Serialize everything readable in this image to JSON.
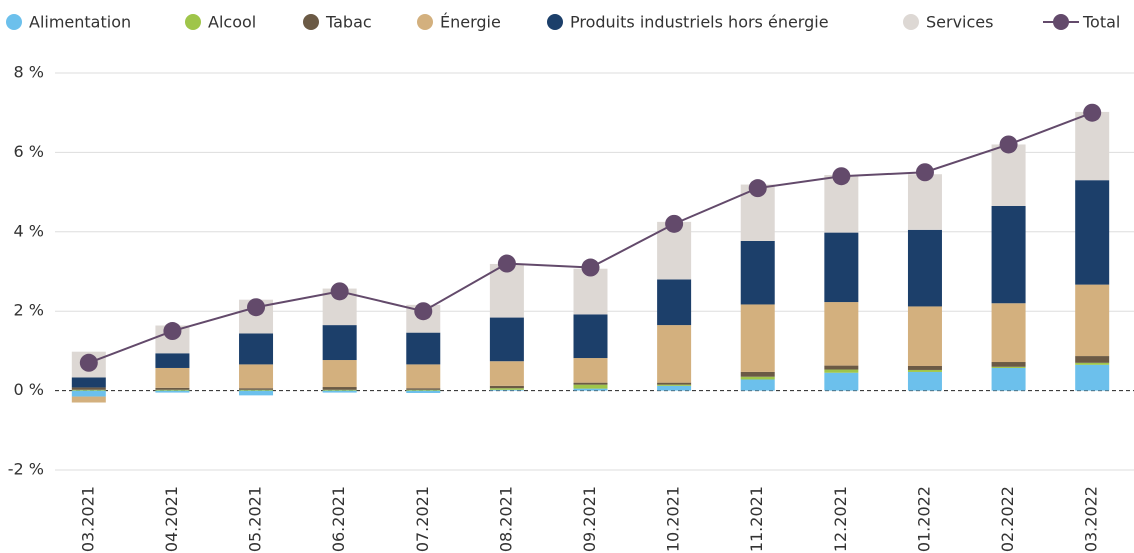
{
  "chart_data": {
    "type": "stacked-bar-line",
    "categories": [
      "03.2021",
      "04.2021",
      "05.2021",
      "06.2021",
      "07.2021",
      "08.2021",
      "09.2021",
      "10.2021",
      "11.2021",
      "12.2021",
      "01.2022",
      "02.2022",
      "03.2022"
    ],
    "series": [
      {
        "name": "Alimentation",
        "color": "#6cc0ec",
        "values": [
          -0.15,
          -0.05,
          -0.12,
          -0.05,
          -0.06,
          0.02,
          0.05,
          0.12,
          0.28,
          0.45,
          0.47,
          0.57,
          0.65
        ]
      },
      {
        "name": "Alcool",
        "color": "#9fc54a",
        "values": [
          0.02,
          0.02,
          0.02,
          0.02,
          0.02,
          0.04,
          0.1,
          0.03,
          0.07,
          0.08,
          0.05,
          0.03,
          0.05
        ]
      },
      {
        "name": "Tabac",
        "color": "#6b5a45",
        "values": [
          0.06,
          0.05,
          0.04,
          0.07,
          0.04,
          0.06,
          0.05,
          0.05,
          0.12,
          0.1,
          0.1,
          0.12,
          0.17
        ]
      },
      {
        "name": "Énergie",
        "color": "#d3b07e",
        "values": [
          -0.15,
          0.5,
          0.6,
          0.68,
          0.6,
          0.62,
          0.62,
          1.45,
          1.7,
          1.6,
          1.5,
          1.48,
          1.8
        ]
      },
      {
        "name": "Produits industriels hors énergie",
        "color": "#1c3f6a",
        "values": [
          0.25,
          0.37,
          0.78,
          0.88,
          0.8,
          1.1,
          1.1,
          1.15,
          1.6,
          1.75,
          1.93,
          2.45,
          2.63
        ]
      },
      {
        "name": "Services",
        "color": "#ddd8d4",
        "values": [
          0.65,
          0.7,
          0.85,
          0.92,
          0.7,
          1.35,
          1.15,
          1.45,
          1.42,
          1.45,
          1.4,
          1.55,
          1.72
        ]
      }
    ],
    "line": {
      "name": "Total",
      "color": "#634a6b",
      "values": [
        0.7,
        1.5,
        2.1,
        2.5,
        2.0,
        3.2,
        3.1,
        4.2,
        5.1,
        5.4,
        5.5,
        6.2,
        7.0
      ]
    },
    "ylim": [
      -2,
      8
    ],
    "yticks": [
      {
        "value": -2,
        "label": "-2 %"
      },
      {
        "value": 0,
        "label": "0 %"
      },
      {
        "value": 2,
        "label": "2 %"
      },
      {
        "value": 4,
        "label": "4 %"
      },
      {
        "value": 6,
        "label": "6 %"
      },
      {
        "value": 8,
        "label": "8 %"
      }
    ],
    "grid": true
  }
}
